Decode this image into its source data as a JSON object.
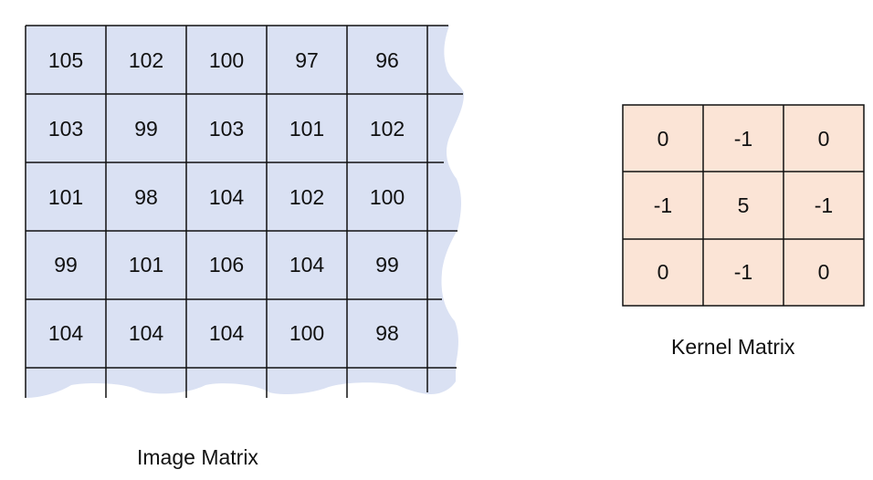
{
  "image_matrix": {
    "caption": "Image Matrix",
    "fill_color": "#dae1f3",
    "rows": [
      [
        "105",
        "102",
        "100",
        "97",
        "96"
      ],
      [
        "103",
        "99",
        "103",
        "101",
        "102"
      ],
      [
        "101",
        "98",
        "104",
        "102",
        "100"
      ],
      [
        "99",
        "101",
        "106",
        "104",
        "99"
      ],
      [
        "104",
        "104",
        "104",
        "100",
        "98"
      ]
    ]
  },
  "kernel_matrix": {
    "caption": "Kernel Matrix",
    "fill_color": "#fbe4d6",
    "rows": [
      [
        "0",
        "-1",
        "0"
      ],
      [
        "-1",
        "5",
        "-1"
      ],
      [
        "0",
        "-1",
        "0"
      ]
    ]
  }
}
